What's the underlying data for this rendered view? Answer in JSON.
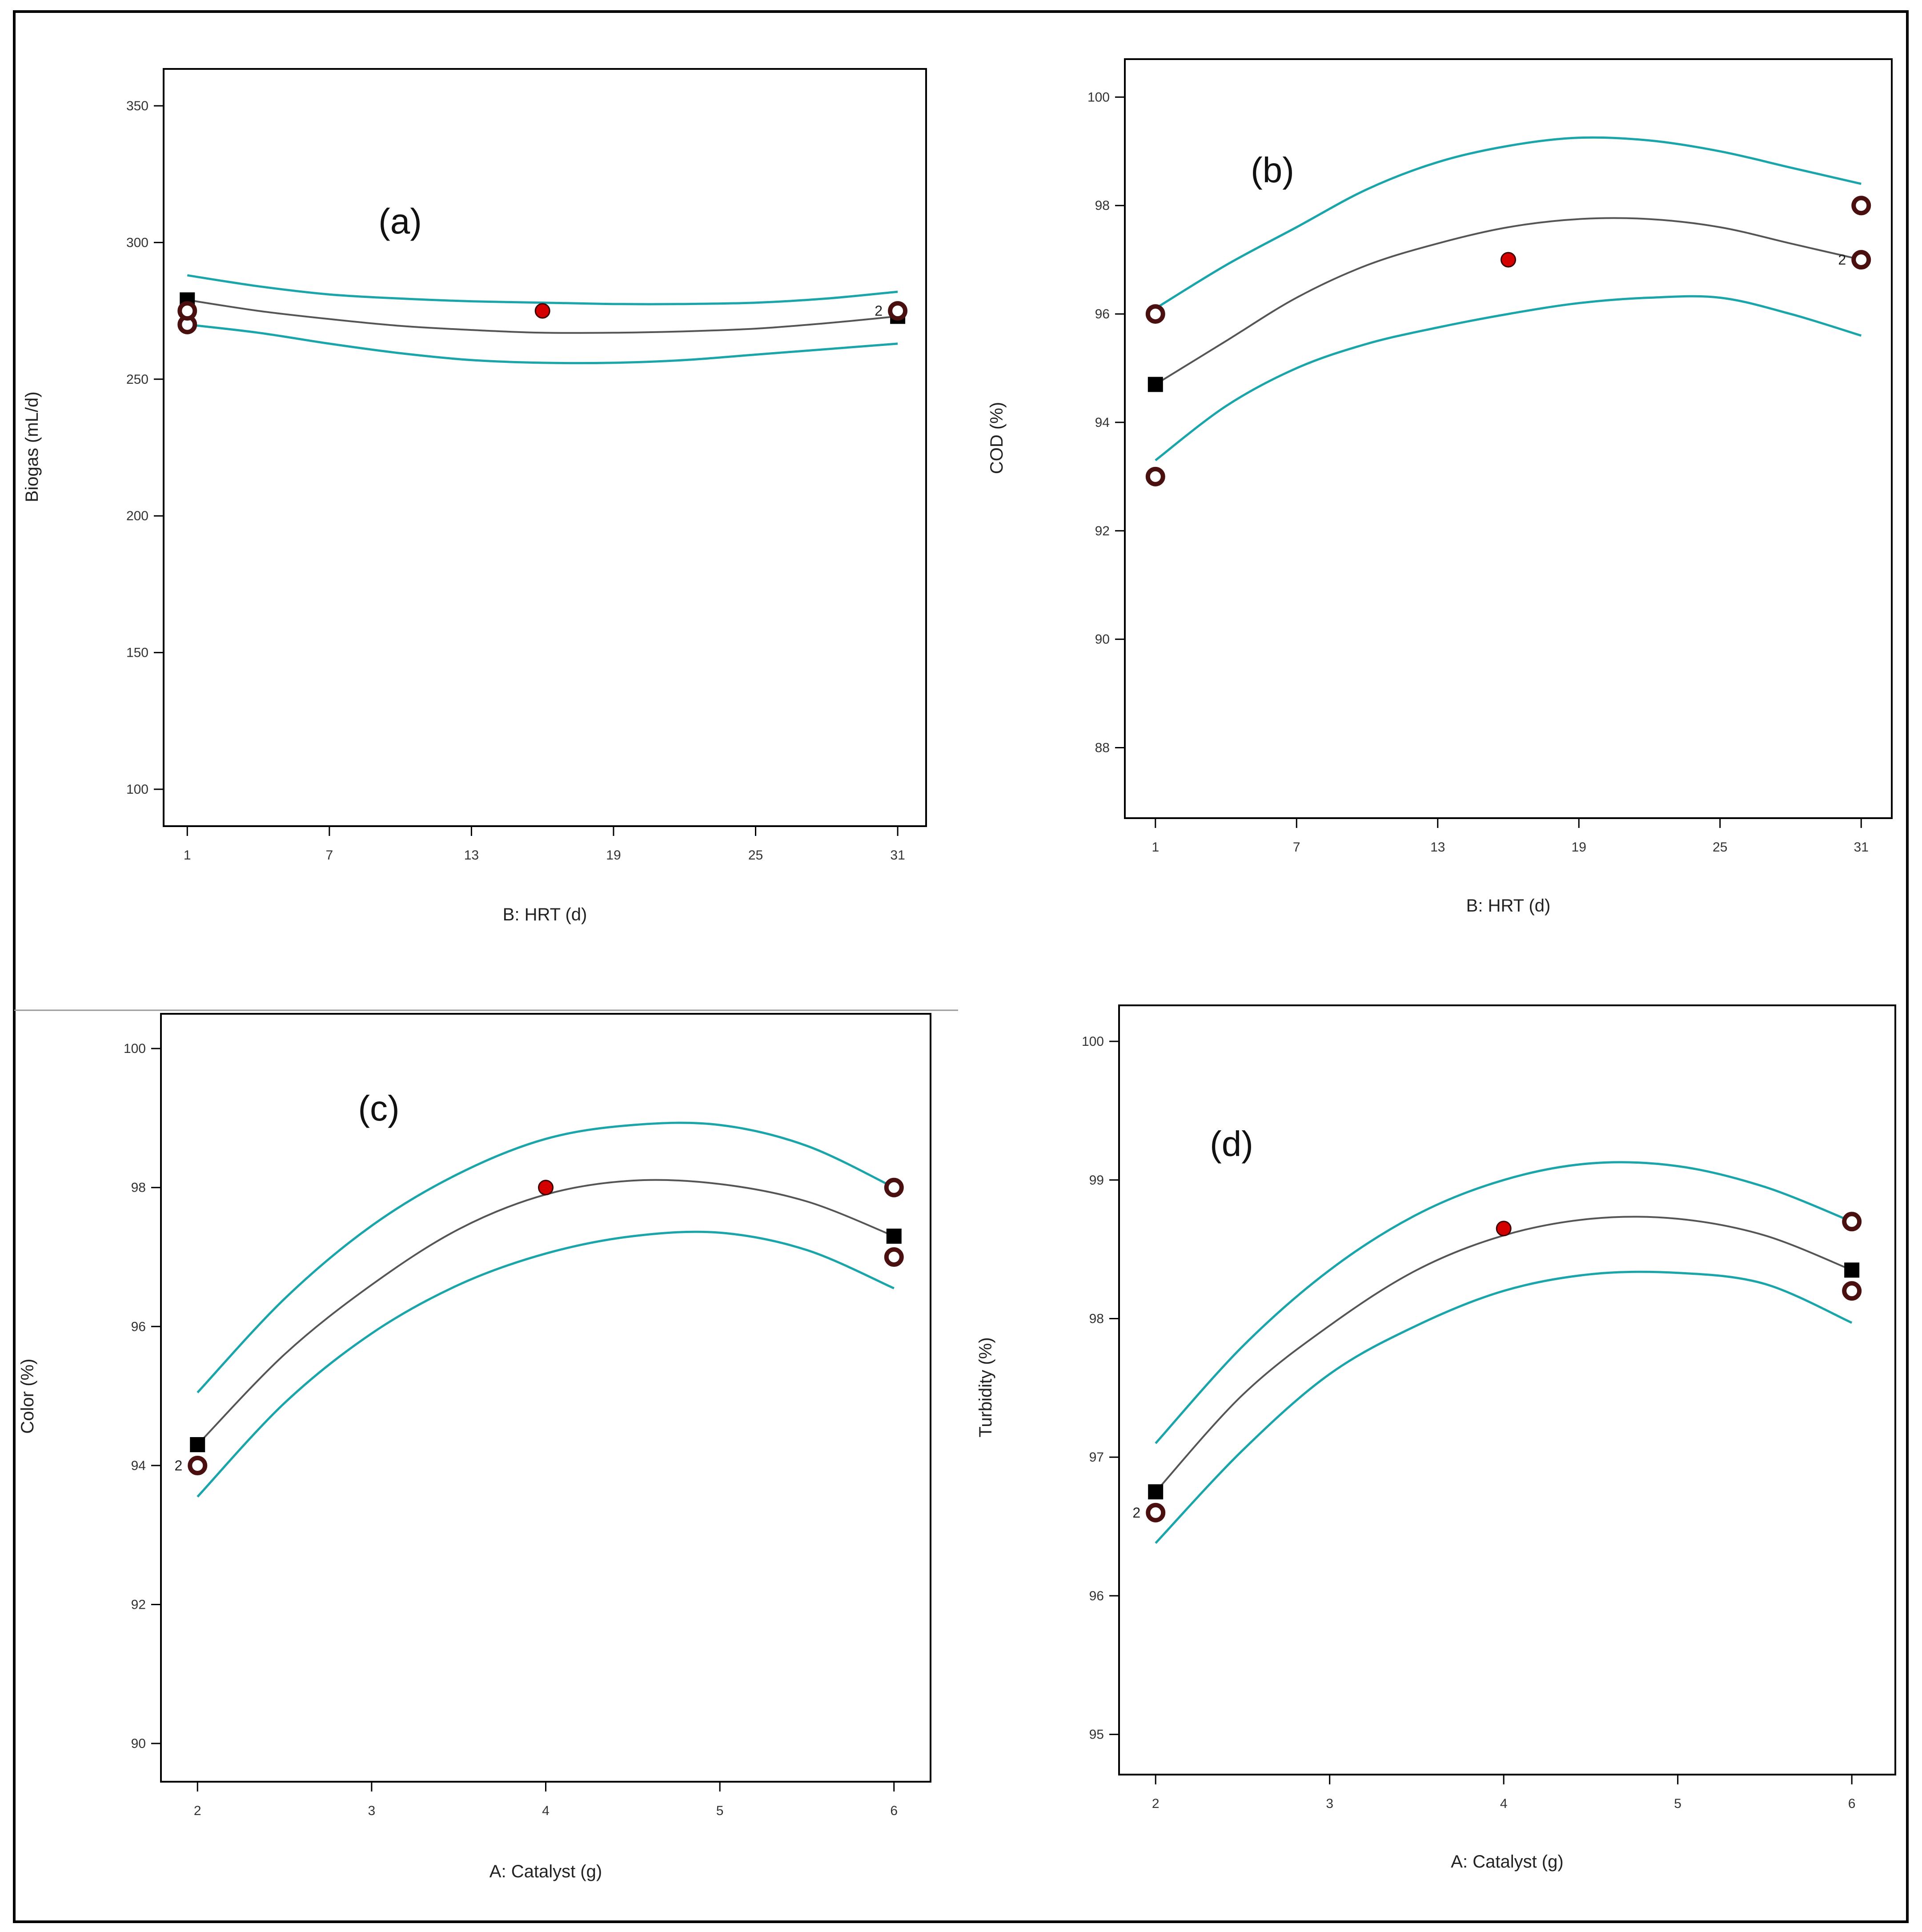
{
  "colors": {
    "ci_band": "#1aa5ab",
    "fit_line": "#555555",
    "design_point_fill": "#d40000",
    "actual_point_ring": "#4a0f0f",
    "predicted_marker": "#000000",
    "frame": "#000000"
  },
  "chart_data": [
    {
      "id": "a",
      "type": "line",
      "panel_label": "(a)",
      "xlabel": "B: HRT (d)",
      "ylabel": "Biogas (mL/d)",
      "xlim": [
        0,
        32.2
      ],
      "ylim": [
        86.5,
        363.5
      ],
      "xticks": [
        1,
        7,
        13,
        19,
        25,
        31
      ],
      "yticks": [
        100,
        150,
        200,
        250,
        300,
        350
      ],
      "tick_labels_x": [
        "1",
        "7",
        "13",
        "19",
        "25",
        "31"
      ],
      "tick_labels_y": [
        "100",
        "150",
        "200",
        "250",
        "300",
        "350"
      ],
      "series": [
        {
          "role": "fit",
          "x": [
            1,
            4,
            7,
            10,
            13,
            16,
            19,
            22,
            25,
            28,
            31
          ],
          "y": [
            279,
            275,
            272,
            269.5,
            268,
            267,
            267,
            267.5,
            268.5,
            270.5,
            273
          ]
        },
        {
          "role": "upper",
          "x": [
            1,
            4,
            7,
            10,
            13,
            16,
            19,
            22,
            25,
            28,
            31
          ],
          "y": [
            288,
            284,
            281,
            279.5,
            278.5,
            278,
            277.5,
            277.5,
            278,
            279.5,
            282
          ]
        },
        {
          "role": "lower",
          "x": [
            1,
            4,
            7,
            10,
            13,
            16,
            19,
            22,
            25,
            28,
            31
          ],
          "y": [
            270,
            267,
            263,
            259.5,
            257,
            256,
            256,
            257,
            259,
            261,
            263
          ]
        }
      ],
      "points": [
        {
          "kind": "design",
          "x": 16,
          "y": 275
        },
        {
          "kind": "predicted",
          "x": 1,
          "y": 279
        },
        {
          "kind": "predicted",
          "x": 31,
          "y": 273
        },
        {
          "kind": "actual",
          "x": 1,
          "y": 270
        },
        {
          "kind": "actual",
          "x": 1,
          "y": 275
        },
        {
          "kind": "actual",
          "x": 31,
          "y": 275,
          "count_label": "2"
        }
      ]
    },
    {
      "id": "b",
      "type": "line",
      "panel_label": "(b)",
      "xlabel": "B: HRT (d)",
      "ylabel": "COD (%)",
      "xlim": [
        -0.3,
        32.3
      ],
      "ylim": [
        86.7,
        100.7
      ],
      "xticks": [
        1,
        7,
        13,
        19,
        25,
        31
      ],
      "yticks": [
        88,
        90,
        92,
        94,
        96,
        98,
        100
      ],
      "tick_labels_x": [
        "1",
        "7",
        "13",
        "19",
        "25",
        "31"
      ],
      "tick_labels_y": [
        "88",
        "90",
        "92",
        "94",
        "96",
        "98",
        "100"
      ],
      "series": [
        {
          "role": "fit",
          "x": [
            1,
            4,
            7,
            10,
            13,
            16,
            19,
            22,
            25,
            28,
            31
          ],
          "y": [
            94.7,
            95.5,
            96.3,
            96.9,
            97.3,
            97.6,
            97.75,
            97.75,
            97.6,
            97.3,
            97
          ]
        },
        {
          "role": "upper",
          "x": [
            1,
            4,
            7,
            10,
            13,
            16,
            19,
            22,
            25,
            28,
            31
          ],
          "y": [
            96.1,
            96.9,
            97.6,
            98.3,
            98.8,
            99.1,
            99.25,
            99.2,
            99.0,
            98.7,
            98.4
          ]
        },
        {
          "role": "lower",
          "x": [
            1,
            4,
            7,
            10,
            13,
            16,
            19,
            22,
            25,
            28,
            31
          ],
          "y": [
            93.3,
            94.3,
            95.0,
            95.45,
            95.75,
            96.0,
            96.2,
            96.3,
            96.3,
            96.0,
            95.6
          ]
        }
      ],
      "points": [
        {
          "kind": "design",
          "x": 16,
          "y": 97
        },
        {
          "kind": "predicted",
          "x": 1,
          "y": 94.7
        },
        {
          "kind": "actual",
          "x": 1,
          "y": 96
        },
        {
          "kind": "actual",
          "x": 1,
          "y": 93
        },
        {
          "kind": "actual",
          "x": 31,
          "y": 98
        },
        {
          "kind": "actual",
          "x": 31,
          "y": 97,
          "count_label": "2"
        }
      ]
    },
    {
      "id": "c",
      "type": "line",
      "panel_label": "(c)",
      "xlabel": "A: Catalyst (g)",
      "ylabel": "Color (%)",
      "xlim": [
        1.79,
        6.21
      ],
      "ylim": [
        89.45,
        100.5
      ],
      "xticks": [
        2,
        3,
        4,
        5,
        6
      ],
      "yticks": [
        90,
        92,
        94,
        96,
        98,
        100
      ],
      "tick_labels_x": [
        "2",
        "3",
        "4",
        "5",
        "6"
      ],
      "tick_labels_y": [
        "90",
        "92",
        "94",
        "96",
        "98",
        "100"
      ],
      "series": [
        {
          "role": "fit",
          "x": [
            2,
            2.5,
            3,
            3.5,
            4,
            4.5,
            5,
            5.5,
            6
          ],
          "y": [
            94.3,
            95.6,
            96.6,
            97.4,
            97.9,
            98.1,
            98.05,
            97.8,
            97.3
          ]
        },
        {
          "role": "upper",
          "x": [
            2,
            2.5,
            3,
            3.5,
            4,
            4.5,
            5,
            5.5,
            6
          ],
          "y": [
            95.05,
            96.4,
            97.45,
            98.2,
            98.7,
            98.9,
            98.9,
            98.6,
            98.0
          ]
        },
        {
          "role": "lower",
          "x": [
            2,
            2.5,
            3,
            3.5,
            4,
            4.5,
            5,
            5.5,
            6
          ],
          "y": [
            93.55,
            94.9,
            95.9,
            96.6,
            97.05,
            97.3,
            97.35,
            97.1,
            96.55
          ]
        }
      ],
      "points": [
        {
          "kind": "design",
          "x": 4,
          "y": 98
        },
        {
          "kind": "predicted",
          "x": 2,
          "y": 94.3
        },
        {
          "kind": "predicted",
          "x": 6,
          "y": 97.3
        },
        {
          "kind": "actual",
          "x": 2,
          "y": 94,
          "count_label": "2"
        },
        {
          "kind": "actual",
          "x": 6,
          "y": 98
        },
        {
          "kind": "actual",
          "x": 6,
          "y": 97
        }
      ]
    },
    {
      "id": "d",
      "type": "line",
      "panel_label": "(d)",
      "xlabel": "A: Catalyst (g)",
      "ylabel": "Turbidity (%)",
      "xlim": [
        1.79,
        6.25
      ],
      "ylim": [
        94.71,
        100.26
      ],
      "xticks": [
        2,
        3,
        4,
        5,
        6
      ],
      "yticks": [
        95,
        96,
        97,
        98,
        99,
        100
      ],
      "tick_labels_x": [
        "2",
        "3",
        "4",
        "5",
        "6"
      ],
      "tick_labels_y": [
        "95",
        "96",
        "97",
        "98",
        "99",
        "100"
      ],
      "series": [
        {
          "role": "fit",
          "x": [
            2,
            2.5,
            3,
            3.5,
            4,
            4.5,
            5,
            5.5,
            6
          ],
          "y": [
            96.75,
            97.45,
            97.95,
            98.35,
            98.6,
            98.72,
            98.72,
            98.6,
            98.35
          ]
        },
        {
          "role": "upper",
          "x": [
            2,
            2.5,
            3,
            3.5,
            4,
            4.5,
            5,
            5.5,
            6
          ],
          "y": [
            97.1,
            97.8,
            98.35,
            98.75,
            99.0,
            99.12,
            99.1,
            98.95,
            98.7
          ]
        },
        {
          "role": "lower",
          "x": [
            2,
            2.5,
            3,
            3.5,
            4,
            4.5,
            5,
            5.5,
            6
          ],
          "y": [
            96.38,
            97.05,
            97.6,
            97.95,
            98.2,
            98.32,
            98.33,
            98.25,
            97.97
          ]
        }
      ],
      "points": [
        {
          "kind": "design",
          "x": 4,
          "y": 98.65
        },
        {
          "kind": "predicted",
          "x": 2,
          "y": 96.75
        },
        {
          "kind": "predicted",
          "x": 6,
          "y": 98.35
        },
        {
          "kind": "actual",
          "x": 2,
          "y": 96.6,
          "count_label": "2"
        },
        {
          "kind": "actual",
          "x": 6,
          "y": 98.7
        },
        {
          "kind": "actual",
          "x": 6,
          "y": 98.2
        }
      ]
    }
  ]
}
